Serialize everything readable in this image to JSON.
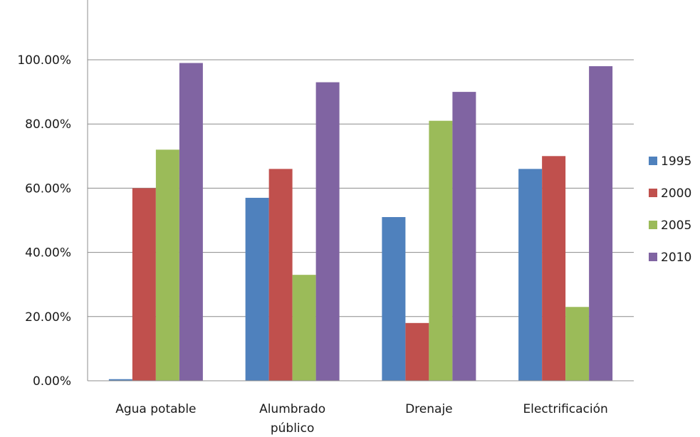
{
  "chart_data": {
    "type": "bar",
    "title": "",
    "xlabel": "",
    "ylabel": "",
    "categories": [
      "Agua potable",
      "Alumbrado público",
      "Drenaje",
      "Electrificación"
    ],
    "category_lines": [
      [
        "Agua potable"
      ],
      [
        "Alumbrado",
        "público"
      ],
      [
        "Drenaje"
      ],
      [
        "Electrificación"
      ]
    ],
    "series": [
      {
        "name": "1995",
        "color": "#4f81bd",
        "values": [
          0.5,
          57,
          51,
          66
        ]
      },
      {
        "name": "2000",
        "color": "#c0504d",
        "values": [
          60,
          66,
          18,
          70
        ]
      },
      {
        "name": "2005",
        "color": "#9bbb59",
        "values": [
          72,
          33,
          81,
          23
        ]
      },
      {
        "name": "2010",
        "color": "#8064a2",
        "values": [
          99,
          93,
          90,
          98
        ]
      }
    ],
    "ylim": [
      0,
      120
    ],
    "yticks": [
      0,
      20,
      40,
      60,
      80,
      100
    ],
    "ytick_labels": [
      "0.00%",
      "20.00%",
      "40.00%",
      "60.00%",
      "80.00%",
      "100.00%"
    ],
    "grid": true,
    "legend_position": "right"
  }
}
